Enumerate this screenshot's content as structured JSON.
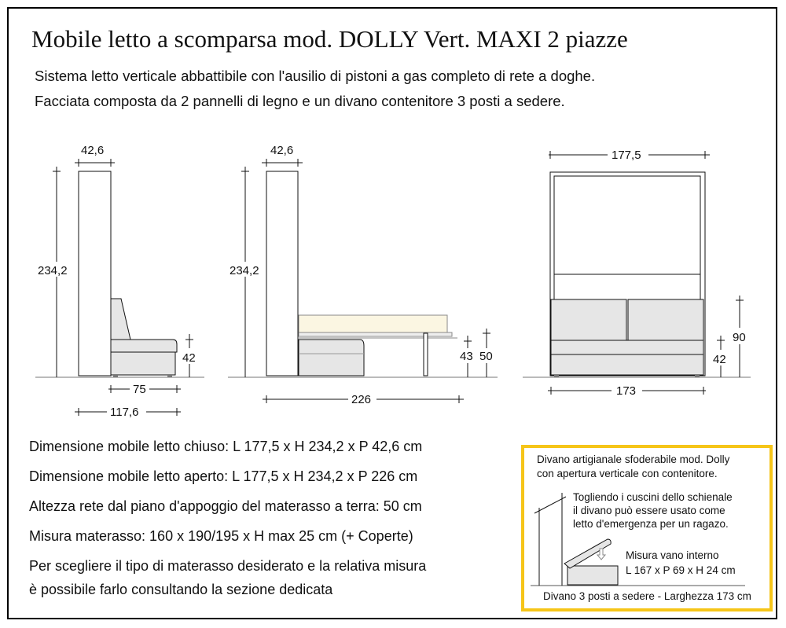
{
  "title": "Mobile letto a scomparsa mod. DOLLY Vert. MAXI 2 piazze",
  "subtitle_lines": [
    "Sistema letto verticale abbattibile con l'ausilio di pistoni a gas  completo di rete a doghe.",
    "Facciata composta da 2 pannelli di legno e un divano contenitore 3 posti a sedere."
  ],
  "drawings": {
    "side_closed": {
      "depth": "42,6",
      "height": "234,2",
      "seat_height": "42",
      "sofa_depth": "75",
      "total_depth": "117,6"
    },
    "side_open": {
      "depth": "42,6",
      "height": "234,2",
      "frame_height": "43",
      "net_height": "50",
      "total_depth": "226"
    },
    "front": {
      "width": "177,5",
      "sofa_width": "173",
      "seat_height": "42",
      "sofa_height": "90"
    }
  },
  "specs": [
    "Dimensione mobile letto chiuso: L 177,5 x H 234,2 x P 42,6 cm",
    "Dimensione mobile letto aperto: L 177,5 x H 234,2 x P 226 cm",
    "Altezza rete dal piano d'appoggio del materasso a terra: 50 cm",
    "Misura materasso: 160 x 190/195 x H max 25 cm (+ Coperte)",
    "Per scegliere il tipo di materasso desiderato e la relativa misura",
    "è possibile farlo consultando la sezione dedicata"
  ],
  "sofa_box": {
    "border_color": "#f6c518",
    "line1": "Divano artigianale sfoderabile mod. Dolly",
    "line2": "con apertura verticale con  contenitore.",
    "note1": "Togliendo i cuscini dello schienale",
    "note2": "il divano può essere usato come",
    "note3": "letto d'emergenza per un ragazo.",
    "storage_label": "Misura vano interno",
    "storage_size": "L 167 x P 69 x H 24 cm",
    "footer": "Divano 3 posti a sedere - Larghezza 173 cm"
  }
}
